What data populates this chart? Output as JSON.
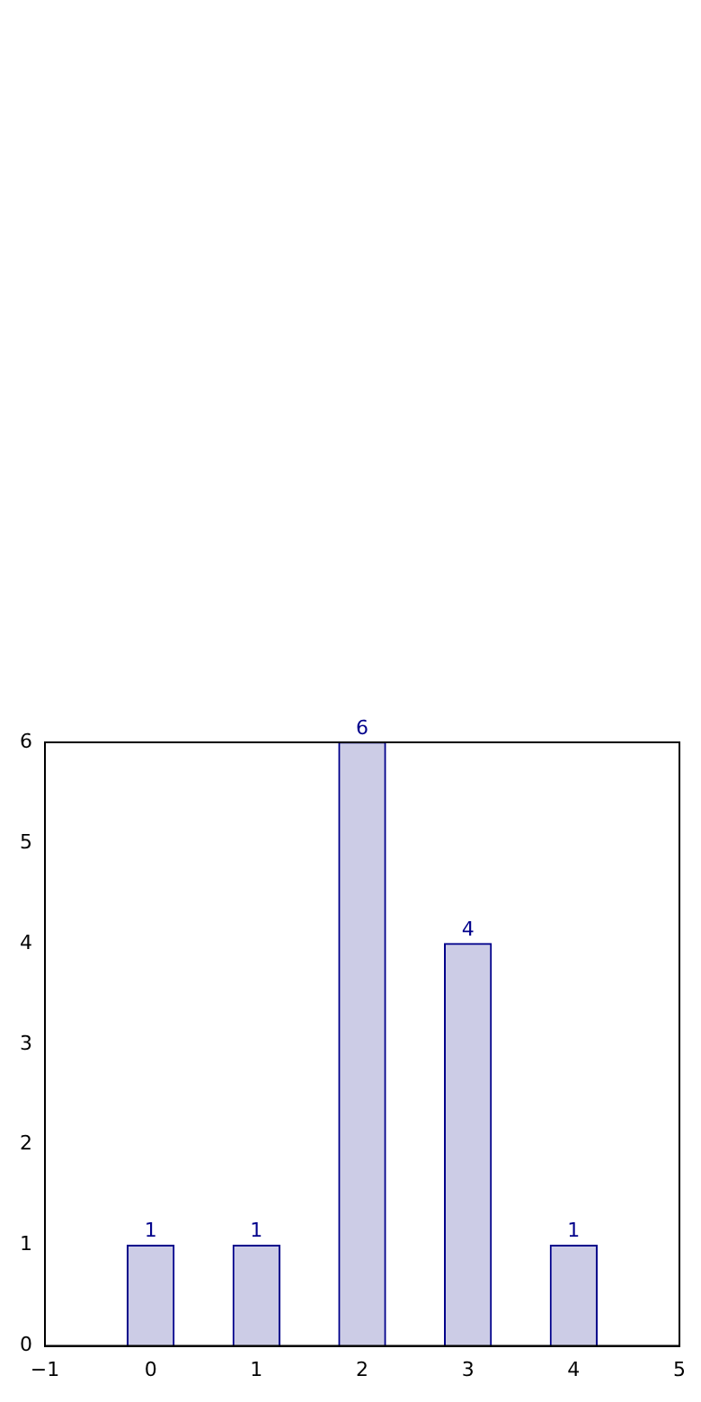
{
  "chart_data": {
    "type": "bar",
    "x": [
      0,
      1,
      2,
      3,
      4
    ],
    "values": [
      1,
      1,
      6,
      4,
      1
    ],
    "color": "#ccccE6",
    "xlim": [
      -1,
      5
    ],
    "xticks": [
      -1,
      0,
      1,
      2,
      3,
      4,
      5
    ],
    "ylim": [
      0,
      6
    ],
    "yticks": [
      0,
      1,
      2,
      3,
      4,
      5,
      6
    ],
    "data_labels": true,
    "grid": false,
    "legend": false
  }
}
